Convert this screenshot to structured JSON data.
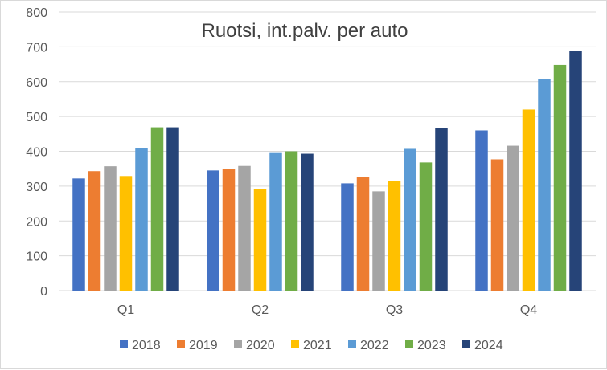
{
  "chart_data": {
    "type": "bar",
    "title": "Ruotsi, int.palv. per auto",
    "xlabel": "",
    "ylabel": "",
    "categories": [
      "Q1",
      "Q2",
      "Q3",
      "Q4"
    ],
    "ylim": [
      0,
      800
    ],
    "yticks": [
      0,
      100,
      200,
      300,
      400,
      500,
      600,
      700,
      800
    ],
    "grid": true,
    "legend_position": "bottom",
    "series": [
      {
        "name": "2018",
        "color": "#4472C4",
        "values": [
          322,
          345,
          308,
          460
        ]
      },
      {
        "name": "2019",
        "color": "#ED7D31",
        "values": [
          343,
          350,
          327,
          377
        ]
      },
      {
        "name": "2020",
        "color": "#A5A5A5",
        "values": [
          357,
          358,
          285,
          416
        ]
      },
      {
        "name": "2021",
        "color": "#FFC000",
        "values": [
          329,
          292,
          315,
          520
        ]
      },
      {
        "name": "2022",
        "color": "#5B9BD5",
        "values": [
          409,
          395,
          407,
          607
        ]
      },
      {
        "name": "2023",
        "color": "#70AD47",
        "values": [
          469,
          400,
          368,
          648
        ]
      },
      {
        "name": "2024",
        "color": "#264478",
        "values": [
          469,
          393,
          467,
          688
        ]
      }
    ]
  }
}
